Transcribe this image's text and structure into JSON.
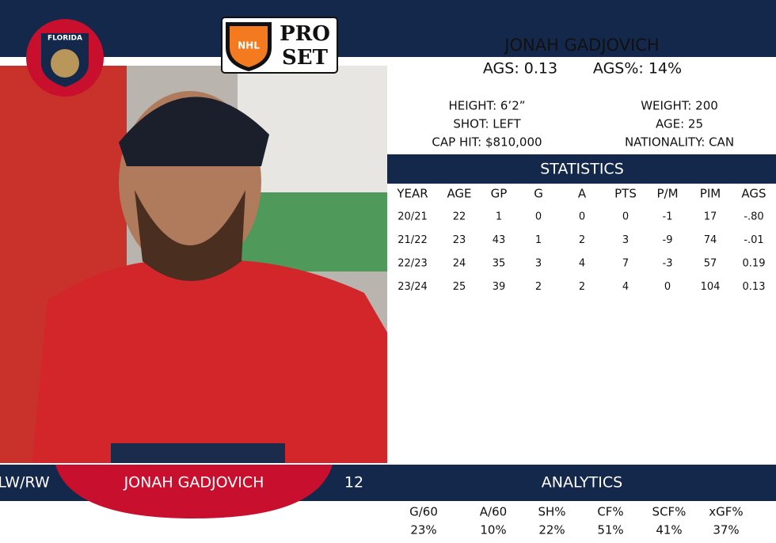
{
  "logos": {
    "team": "FLORIDA",
    "league": "NHL",
    "brand_top": "PRO",
    "brand_bottom": "SET"
  },
  "header": {
    "name": "JONAH GADJOVICH",
    "ags": "AGS: 0.13",
    "ags_pct": "AGS%: 14%"
  },
  "bio": {
    "height": "HEIGHT: 6’2”",
    "weight": "WEIGHT: 200",
    "shot": "SHOT: LEFT",
    "age": "AGE: 25",
    "cap_hit": "CAP HIT: $810,000",
    "nationality": "NATIONALITY: CAN"
  },
  "statistics": {
    "title": "STATISTICS",
    "columns": [
      "YEAR",
      "AGE",
      "GP",
      "G",
      "A",
      "PTS",
      "P/M",
      "PIM",
      "AGS"
    ],
    "rows": [
      [
        "20/21",
        "22",
        "1",
        "0",
        "0",
        "0",
        "-1",
        "17",
        "-.80"
      ],
      [
        "21/22",
        "23",
        "43",
        "1",
        "2",
        "3",
        "-9",
        "74",
        "-.01"
      ],
      [
        "22/23",
        "24",
        "35",
        "3",
        "4",
        "7",
        "-3",
        "57",
        "0.19"
      ],
      [
        "23/24",
        "25",
        "39",
        "2",
        "2",
        "4",
        "0",
        "104",
        "0.13"
      ]
    ]
  },
  "footer": {
    "position": "LW/RW",
    "name": "JONAH GADJOVICH",
    "number": "12"
  },
  "analytics": {
    "title": "ANALYTICS",
    "columns": [
      "G/60",
      "A/60",
      "SH%",
      "CF%",
      "SCF%",
      "xGF%"
    ],
    "values": [
      "23%",
      "10%",
      "22%",
      "51%",
      "41%",
      "37%"
    ]
  }
}
